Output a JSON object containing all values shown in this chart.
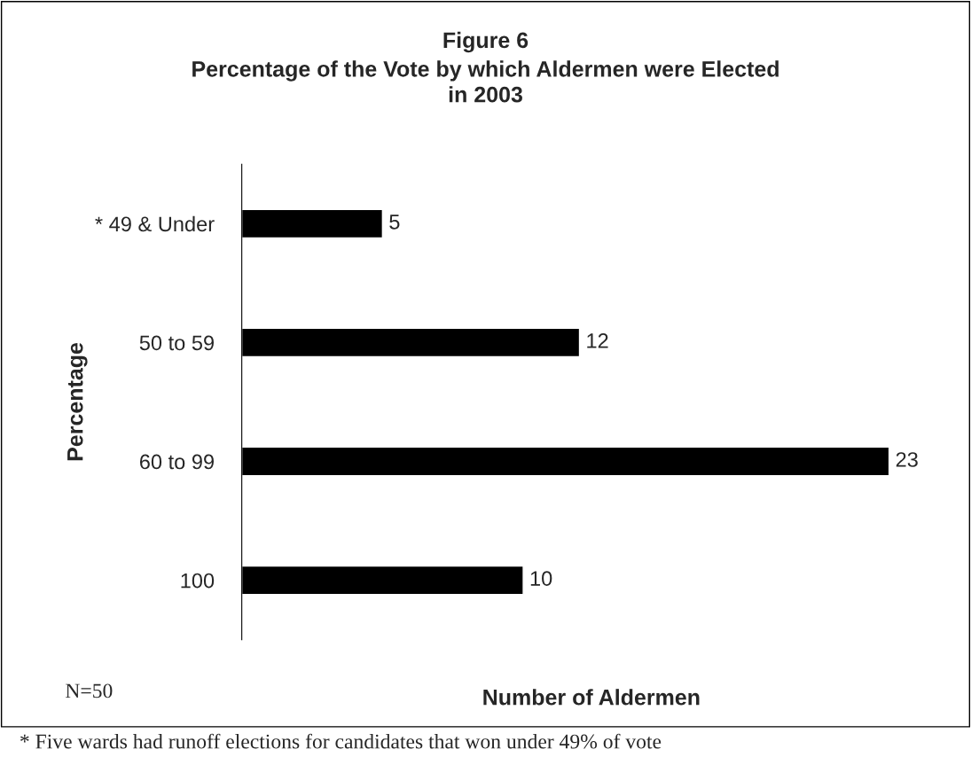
{
  "chart_data": {
    "type": "bar",
    "orientation": "horizontal",
    "title": "Figure 6",
    "subtitle": "Percentage of the Vote by which Aldermen were Elected\nin 2003",
    "ylabel": "Percentage",
    "xlabel": "Number of Aldermen",
    "categories": [
      "* 49 & Under",
      "50 to 59",
      "60 to 99",
      "100"
    ],
    "values": [
      5,
      12,
      23,
      10
    ],
    "color": "#000000",
    "data_labels": true,
    "grid": false,
    "legend": false,
    "tick_labels": "y",
    "annotations": [
      "N=50",
      "* Five wards had runoff elections for candidates that won under 49% of vote"
    ]
  }
}
